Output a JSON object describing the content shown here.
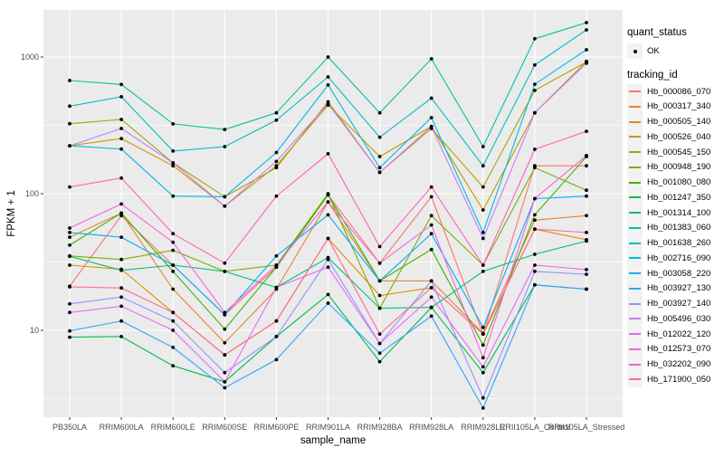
{
  "figure": {
    "y_axis_title": "FPKM + 1",
    "x_axis_title": "sample_name",
    "legend": {
      "quant_status_title": "quant_status",
      "quant_status_items": [
        {
          "label": "OK"
        }
      ],
      "tracking_id_title": "tracking_id"
    }
  },
  "chart_data": {
    "type": "line",
    "title": "",
    "xlabel": "sample_name",
    "ylabel": "FPKM + 1",
    "y_scale": "log10",
    "ylim": [
      2.2,
      2300
    ],
    "y_major_ticks": [
      1000,
      100,
      10
    ],
    "y_minor_ticks": [
      316,
      31.6,
      3.16
    ],
    "grid": true,
    "legend_position": "right",
    "panel_background": "#EBEBEB",
    "grid_color": "#FFFFFF",
    "point_color": "#000000",
    "axis_text_color": "#4D4D4D",
    "categories": [
      "PB350LA",
      "RRIM600LA",
      "RRIM600LE",
      "RRIM600SE",
      "RRIM600PE",
      "RRIM901LA",
      "RRIM928BA",
      "RRIM928LA",
      "RRIM928LE",
      "RRII105LA_Control",
      "RRII105LA_Stressed"
    ],
    "quant_status": "OK",
    "series": [
      {
        "name": "Hb_000086_070",
        "color": "#F8766D",
        "values": [
          21,
          69,
          30,
          13,
          29,
          98,
          31,
          95,
          9.4,
          160,
          160
        ]
      },
      {
        "name": "Hb_000317_340",
        "color": "#EA8331",
        "values": [
          48,
          72,
          20,
          8.1,
          20,
          87,
          23,
          23,
          9.5,
          64,
          69
        ]
      },
      {
        "name": "Hb_000505_140",
        "color": "#D89000",
        "values": [
          30,
          28,
          13.5,
          6.6,
          11.7,
          47,
          18,
          20.5,
          9.4,
          55,
          46
        ]
      },
      {
        "name": "Hb_000526_040",
        "color": "#C09B00",
        "values": [
          224,
          253,
          160,
          81,
          160,
          445,
          187,
          310,
          76,
          390,
          930
        ]
      },
      {
        "name": "Hb_000545_150",
        "color": "#A3A500",
        "values": [
          325,
          349,
          168,
          95,
          155,
          470,
          143,
          300,
          112,
          570,
          920
        ]
      },
      {
        "name": "Hb_000948_190",
        "color": "#7CAE00",
        "values": [
          35,
          33,
          38.5,
          27,
          30,
          100,
          14.5,
          69,
          30,
          155,
          106
        ]
      },
      {
        "name": "Hb_001080_080",
        "color": "#39B600",
        "values": [
          42,
          72,
          27,
          10.2,
          29,
          98,
          23,
          39,
          7.8,
          70,
          187
        ]
      },
      {
        "name": "Hb_001247_350",
        "color": "#00BB4E",
        "values": [
          8.9,
          9,
          5.5,
          4.2,
          9,
          18.3,
          5.9,
          14.7,
          4.9,
          21.5,
          20
        ]
      },
      {
        "name": "Hb_001314_100",
        "color": "#00BF7D",
        "values": [
          34.8,
          27.5,
          30,
          27,
          20.6,
          34,
          14.5,
          14.7,
          27,
          36,
          45
        ]
      },
      {
        "name": "Hb_001383_060",
        "color": "#00C1A3",
        "values": [
          673,
          630,
          324,
          295,
          390,
          1000,
          390,
          970,
          221,
          1360,
          1786
        ]
      },
      {
        "name": "Hb_001638_260",
        "color": "#00BFC4",
        "values": [
          437,
          512,
          205,
          221,
          345,
          715,
          259,
          500,
          160,
          875,
          1580
        ]
      },
      {
        "name": "Hb_002716_090",
        "color": "#00BAE0",
        "values": [
          224,
          212,
          96,
          95,
          200,
          624,
          155,
          360,
          52,
          632,
          1130
        ]
      },
      {
        "name": "Hb_003058_220",
        "color": "#00B0F6",
        "values": [
          52,
          48,
          30,
          13,
          35,
          70,
          23,
          51,
          10.5,
          92,
          96
        ]
      },
      {
        "name": "Hb_003927_130",
        "color": "#35A2FF",
        "values": [
          9.9,
          11.7,
          7.5,
          3.8,
          6.1,
          15.8,
          6.8,
          12.7,
          2.7,
          21.5,
          20
        ]
      },
      {
        "name": "Hb_003927_140",
        "color": "#9590FF",
        "values": [
          15.6,
          17.5,
          11.7,
          4.9,
          9,
          33,
          8,
          23,
          3.2,
          27,
          25.7
        ]
      },
      {
        "name": "Hb_005496_030",
        "color": "#C77CFF",
        "values": [
          224,
          300,
          168,
          81,
          172,
          455,
          143,
          310,
          47,
          390,
          900
        ]
      },
      {
        "name": "Hb_012022_120",
        "color": "#E76BF3",
        "values": [
          13.5,
          15,
          10,
          4.2,
          20.6,
          29,
          8,
          17.5,
          5.4,
          30,
          27.8
        ]
      },
      {
        "name": "Hb_012573_070",
        "color": "#FA62DB",
        "values": [
          56,
          84,
          44,
          13.5,
          30,
          87,
          31,
          59,
          6.3,
          92,
          190
        ]
      },
      {
        "name": "Hb_032202_090",
        "color": "#FF62BC",
        "values": [
          112,
          130,
          51,
          31,
          96,
          196,
          41,
          112,
          30,
          211,
          286
        ]
      },
      {
        "name": "Hb_171900_050",
        "color": "#FF6A98",
        "values": [
          20.8,
          20.4,
          13.5,
          6.6,
          11.7,
          47,
          9.4,
          20.5,
          9.4,
          55,
          52
        ]
      }
    ]
  }
}
